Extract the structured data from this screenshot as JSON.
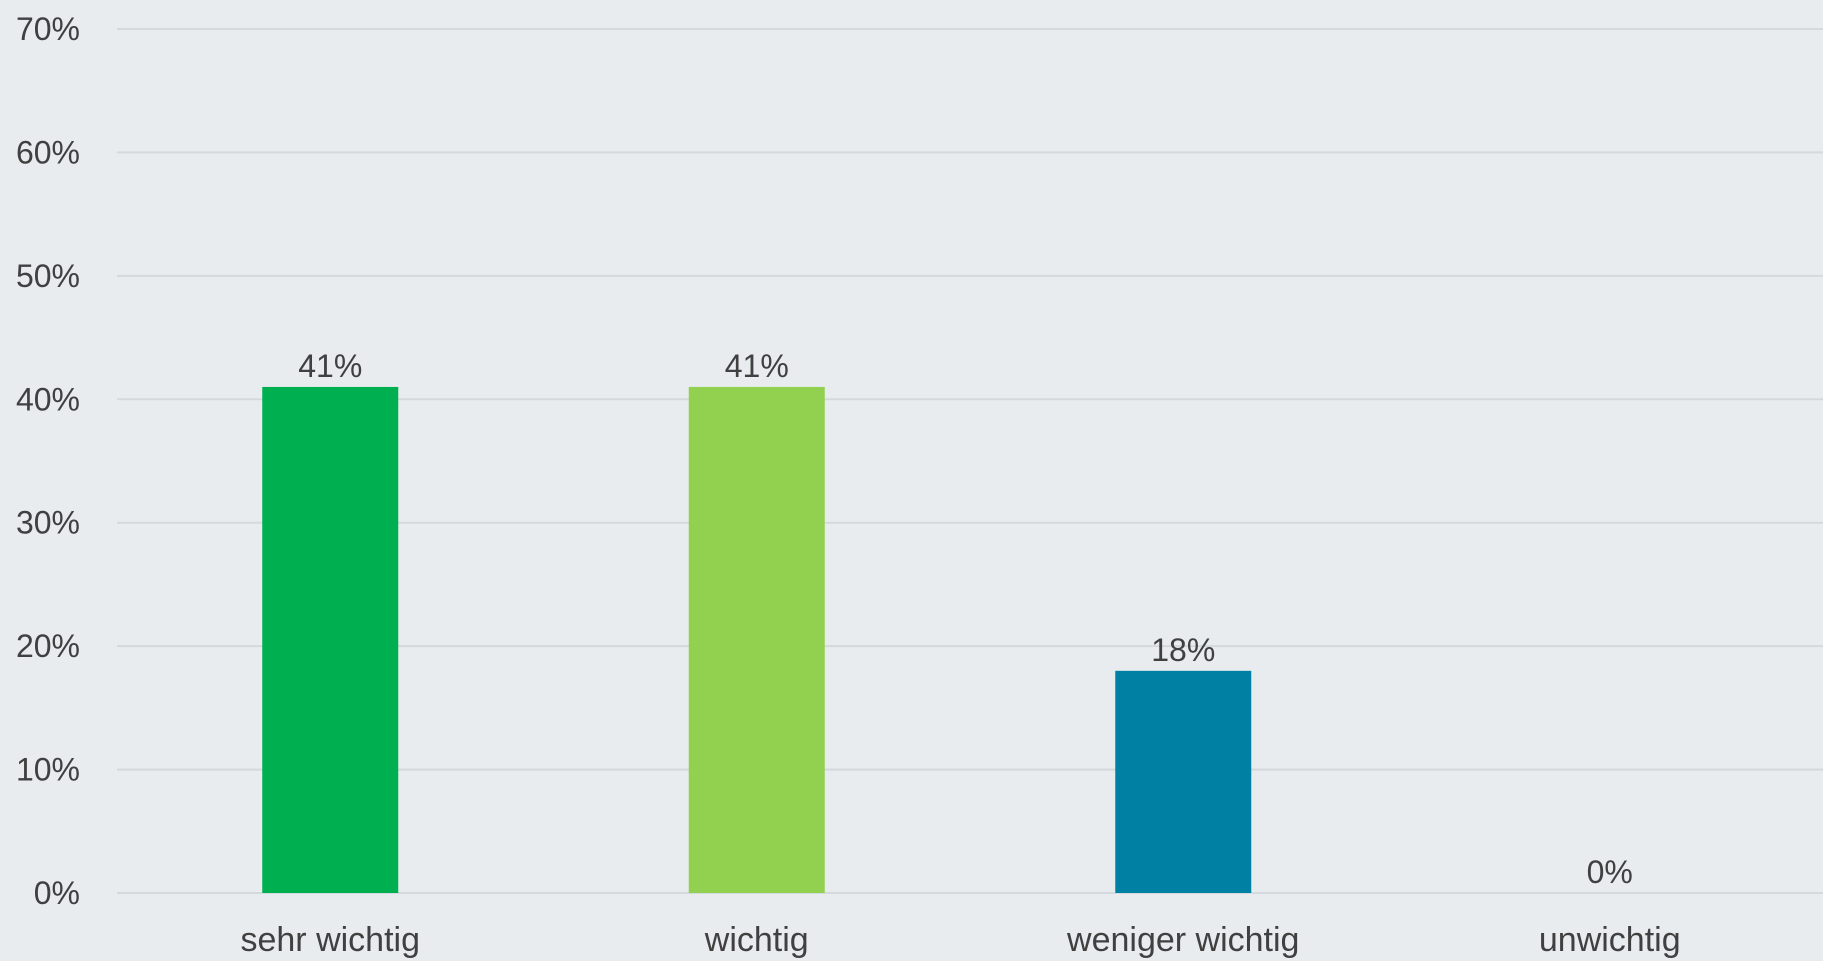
{
  "chart_data": {
    "type": "bar",
    "categories": [
      "sehr wichtig",
      "wichtig",
      "weniger wichtig",
      "unwichtig"
    ],
    "values": [
      41,
      41,
      18,
      0
    ],
    "data_labels": [
      "41%",
      "41%",
      "18%",
      "0%"
    ],
    "bar_colors": [
      "#00b050",
      "#92d050",
      "#0081a3",
      "#0081a3"
    ],
    "ylim": [
      0,
      70
    ],
    "yticks": [
      0,
      10,
      20,
      30,
      40,
      50,
      60,
      70
    ],
    "ytick_labels": [
      "0%",
      "10%",
      "20%",
      "30%",
      "40%",
      "50%",
      "60%",
      "70%"
    ],
    "title": "",
    "xlabel": "",
    "ylabel": "",
    "grid": true,
    "legend": "none",
    "colors": {
      "background": "#e8ecef",
      "gridline": "#d4d9dd",
      "text": "#404040"
    }
  }
}
